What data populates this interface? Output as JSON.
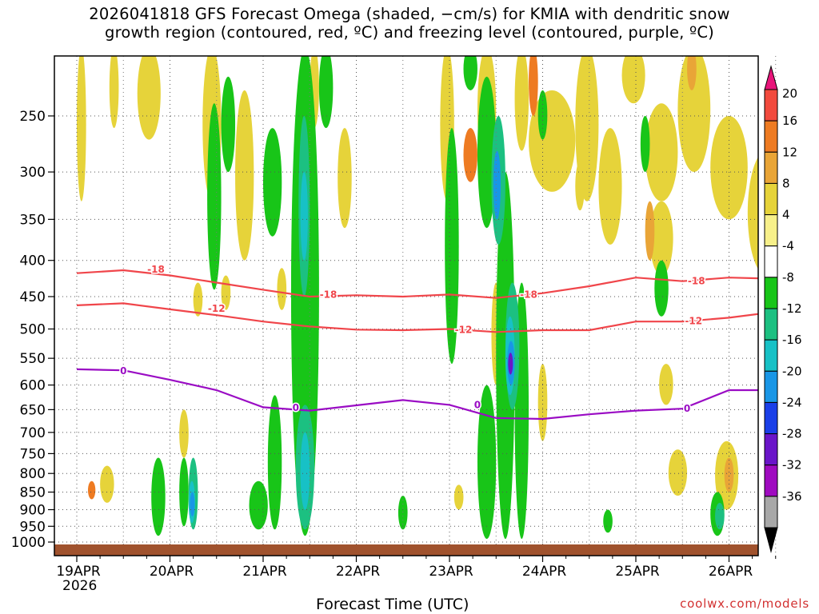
{
  "title": {
    "line1": "2026041818 GFS Forecast Omega (shaded, −cm/s) for KMIA with dendritic snow",
    "line2": "growth region (contoured, red, ºC) and freezing level (contoured, purple, ºC)"
  },
  "credit": "coolwx.com/models",
  "chart_data": {
    "type": "heatmap",
    "title": "2026041818 GFS Forecast Omega (shaded, −cm/s) for KMIA with dendritic snow growth region (contoured, red, ºC) and freezing level (contoured, purple, ºC)",
    "xlabel": "Forecast Time (UTC)",
    "ylabel": "",
    "x_ticks": [
      "19APR",
      "20APR",
      "21APR",
      "22APR",
      "23APR",
      "24APR",
      "25APR",
      "26APR"
    ],
    "x_tick_year": "2026",
    "x_range_days": [
      0,
      7.6
    ],
    "y_ticks": [
      250,
      300,
      350,
      400,
      450,
      500,
      550,
      600,
      650,
      700,
      750,
      800,
      850,
      900,
      950,
      1000
    ],
    "y_range_hpa": [
      200,
      1020
    ],
    "y_scale": "log-pressure, inverted",
    "grid": true,
    "colorbar": {
      "labels": [
        20,
        16,
        12,
        8,
        4,
        -4,
        -8,
        -12,
        -16,
        -20,
        -24,
        -28,
        -32,
        -36
      ],
      "colors": [
        "#e8157a",
        "#f24a3d",
        "#ee7b22",
        "#e9a537",
        "#e6d33a",
        "#f7f08a",
        "#ffffff",
        "#18c518",
        "#1cc081",
        "#17c1c6",
        "#1996e6",
        "#1a3fe8",
        "#6a15c9",
        "#9f0bc0",
        "#a8a8a8",
        "#000000"
      ]
    },
    "contours": [
      {
        "name": "-18",
        "color": "#f0454a",
        "x": [
          0,
          0.5,
          1,
          1.5,
          2,
          2.5,
          3,
          3.5,
          4,
          4.5,
          5,
          5.5,
          6,
          6.5,
          7,
          7.6
        ],
        "y": [
          417,
          413,
          420,
          430,
          440,
          450,
          448,
          450,
          447,
          452,
          445,
          435,
          423,
          428,
          423,
          425
        ]
      },
      {
        "name": "-12",
        "color": "#f0454a",
        "x": [
          0,
          0.5,
          1,
          1.5,
          2,
          2.5,
          3,
          3.5,
          4,
          4.5,
          5,
          5.5,
          6,
          6.5,
          7,
          7.6
        ],
        "y": [
          463,
          460,
          469,
          478,
          488,
          496,
          501,
          502,
          500,
          505,
          502,
          502,
          488,
          488,
          482,
          471
        ]
      },
      {
        "name": "0",
        "color": "#9a0cc4",
        "x": [
          0,
          0.5,
          1,
          1.5,
          2,
          2.5,
          3,
          3.5,
          4,
          4.5,
          5,
          5.5,
          6,
          6.5,
          7,
          7.6
        ],
        "y": [
          570,
          572,
          590,
          610,
          645,
          652,
          641,
          630,
          640,
          668,
          670,
          660,
          652,
          648,
          610,
          610
        ]
      }
    ],
    "contour_labels": [
      {
        "text": "-18",
        "x": 0.85,
        "y": 412
      },
      {
        "text": "-12",
        "x": 1.5,
        "y": 468
      },
      {
        "text": "0",
        "x": 0.5,
        "y": 573
      },
      {
        "text": "-18",
        "x": 2.7,
        "y": 447
      },
      {
        "text": "0",
        "x": 2.35,
        "y": 646
      },
      {
        "text": "-12",
        "x": 4.15,
        "y": 501
      },
      {
        "text": "0",
        "x": 4.3,
        "y": 640
      },
      {
        "text": "-18",
        "x": 4.85,
        "y": 447
      },
      {
        "text": "-18",
        "x": 6.65,
        "y": 428
      },
      {
        "text": "-12",
        "x": 6.62,
        "y": 487
      },
      {
        "text": "0",
        "x": 6.55,
        "y": 648
      }
    ],
    "terrain_color": "#a0522d"
  }
}
